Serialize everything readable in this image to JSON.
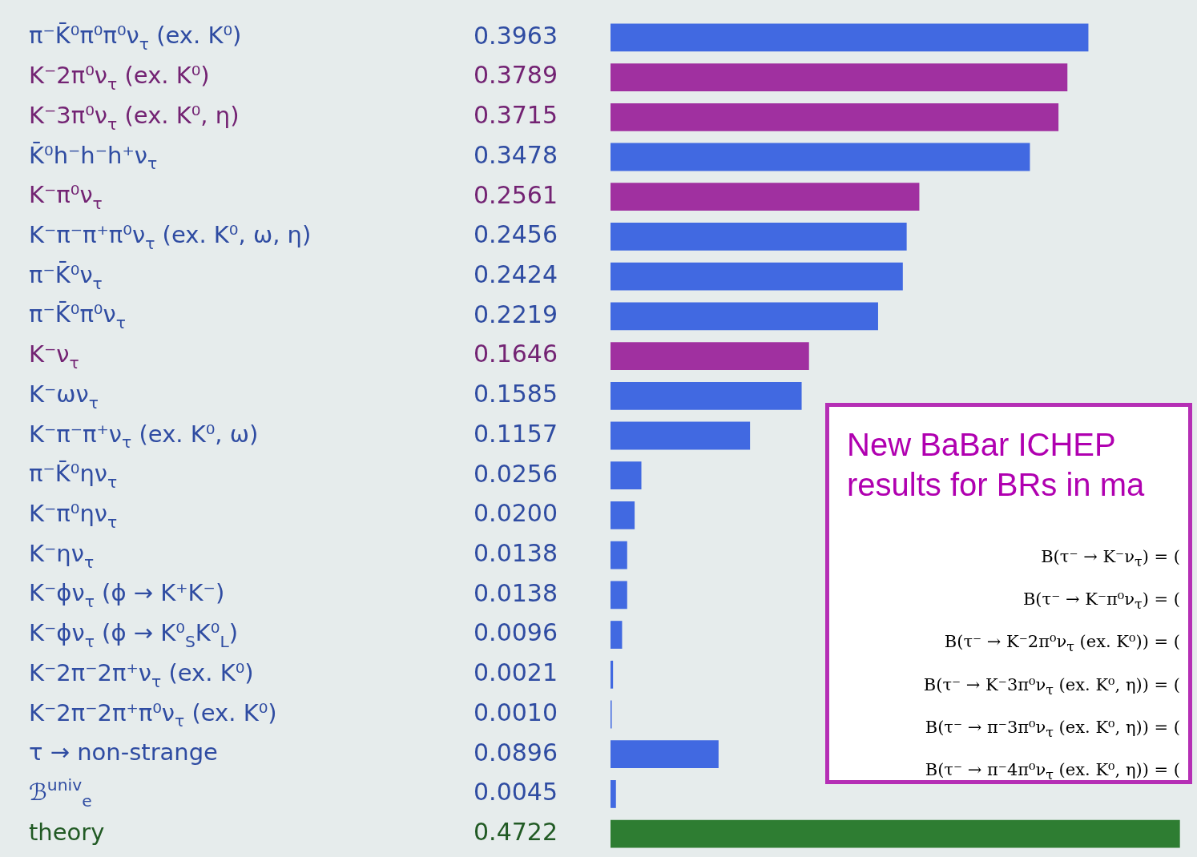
{
  "chart_data": {
    "type": "bar",
    "orientation": "horizontal",
    "value_labels": [
      "0.3963",
      "0.3789",
      "0.3715",
      "0.3478",
      "0.2561",
      "0.2456",
      "0.2424",
      "0.2219",
      "0.1646",
      "0.1585",
      "0.1157",
      "0.0256",
      "0.0200",
      "0.0138",
      "0.0138",
      "0.0096",
      "0.0021",
      "0.0010",
      "0.0896",
      "0.0045",
      "0.4722"
    ],
    "categories": [
      "π⁻K̄⁰π⁰π⁰ν$_{τ}$ (ex. K⁰)",
      "K⁻2π⁰ν$_{τ}$ (ex. K⁰)",
      "K⁻3π⁰ν$_{τ}$ (ex. K⁰, η)",
      "K̄⁰h⁻h⁻h⁺ν$_{τ}$",
      "K⁻π⁰ν$_{τ}$",
      "K⁻π⁻π⁺π⁰ν$_{τ}$ (ex. K⁰, ω, η)",
      "π⁻K̄⁰ν$_{τ}$",
      "π⁻K̄⁰π⁰ν$_{τ}$",
      "K⁻ν$_{τ}$",
      "K⁻ων$_{τ}$",
      "K⁻π⁻π⁺ν$_{τ}$ (ex. K⁰, ω)",
      "π⁻K̄⁰ην$_{τ}$",
      "K⁻π⁰ην$_{τ}$",
      "K⁻ην$_{τ}$",
      "K⁻ϕν$_{τ}$ (ϕ → K⁺K⁻)",
      "K⁻ϕν$_{τ}$ (ϕ → K⁰$_{S}$K⁰$_{L}$)",
      "K⁻2π⁻2π⁺ν$_{τ}$ (ex. K⁰)",
      "K⁻2π⁻2π⁺π⁰ν$_{τ}$ (ex. K⁰)",
      "τ → non-strange",
      "ℬ$^{univ}$$_{e}$",
      "theory"
    ],
    "values": [
      0.3963,
      0.3789,
      0.3715,
      0.3478,
      0.2561,
      0.2456,
      0.2424,
      0.2219,
      0.1646,
      0.1585,
      0.1157,
      0.0256,
      0.02,
      0.0138,
      0.0138,
      0.0096,
      0.0021,
      0.001,
      0.0896,
      0.0045,
      0.4722
    ],
    "colors": [
      "#4169e1",
      "#a030a0",
      "#a030a0",
      "#4169e1",
      "#a030a0",
      "#4169e1",
      "#4169e1",
      "#4169e1",
      "#a030a0",
      "#4169e1",
      "#4169e1",
      "#4169e1",
      "#4169e1",
      "#4169e1",
      "#4169e1",
      "#4169e1",
      "#4169e1",
      "#4169e1",
      "#4169e1",
      "#4169e1",
      "#2e7d32"
    ],
    "annotations": [
      "New BaBar ICHEP",
      "results for BRs in ma",
      "B(τ⁻ → K⁻ν$_{τ}$) = (",
      "B(τ⁻ → K⁻π⁰ν$_{τ}$) = (",
      "B(τ⁻ → K⁻2π⁰ν$_{τ}$ (ex. K⁰)) = (",
      "B(τ⁻ → K⁻3π⁰ν$_{τ}$ (ex. K⁰, η)) = (",
      "B(τ⁻ → π⁻3π⁰ν$_{τ}$ (ex. K⁰, η)) = (",
      "B(τ⁻ → π⁻4π⁰ν$_{τ}$ (ex. K⁰, η)) = ("
    ]
  }
}
